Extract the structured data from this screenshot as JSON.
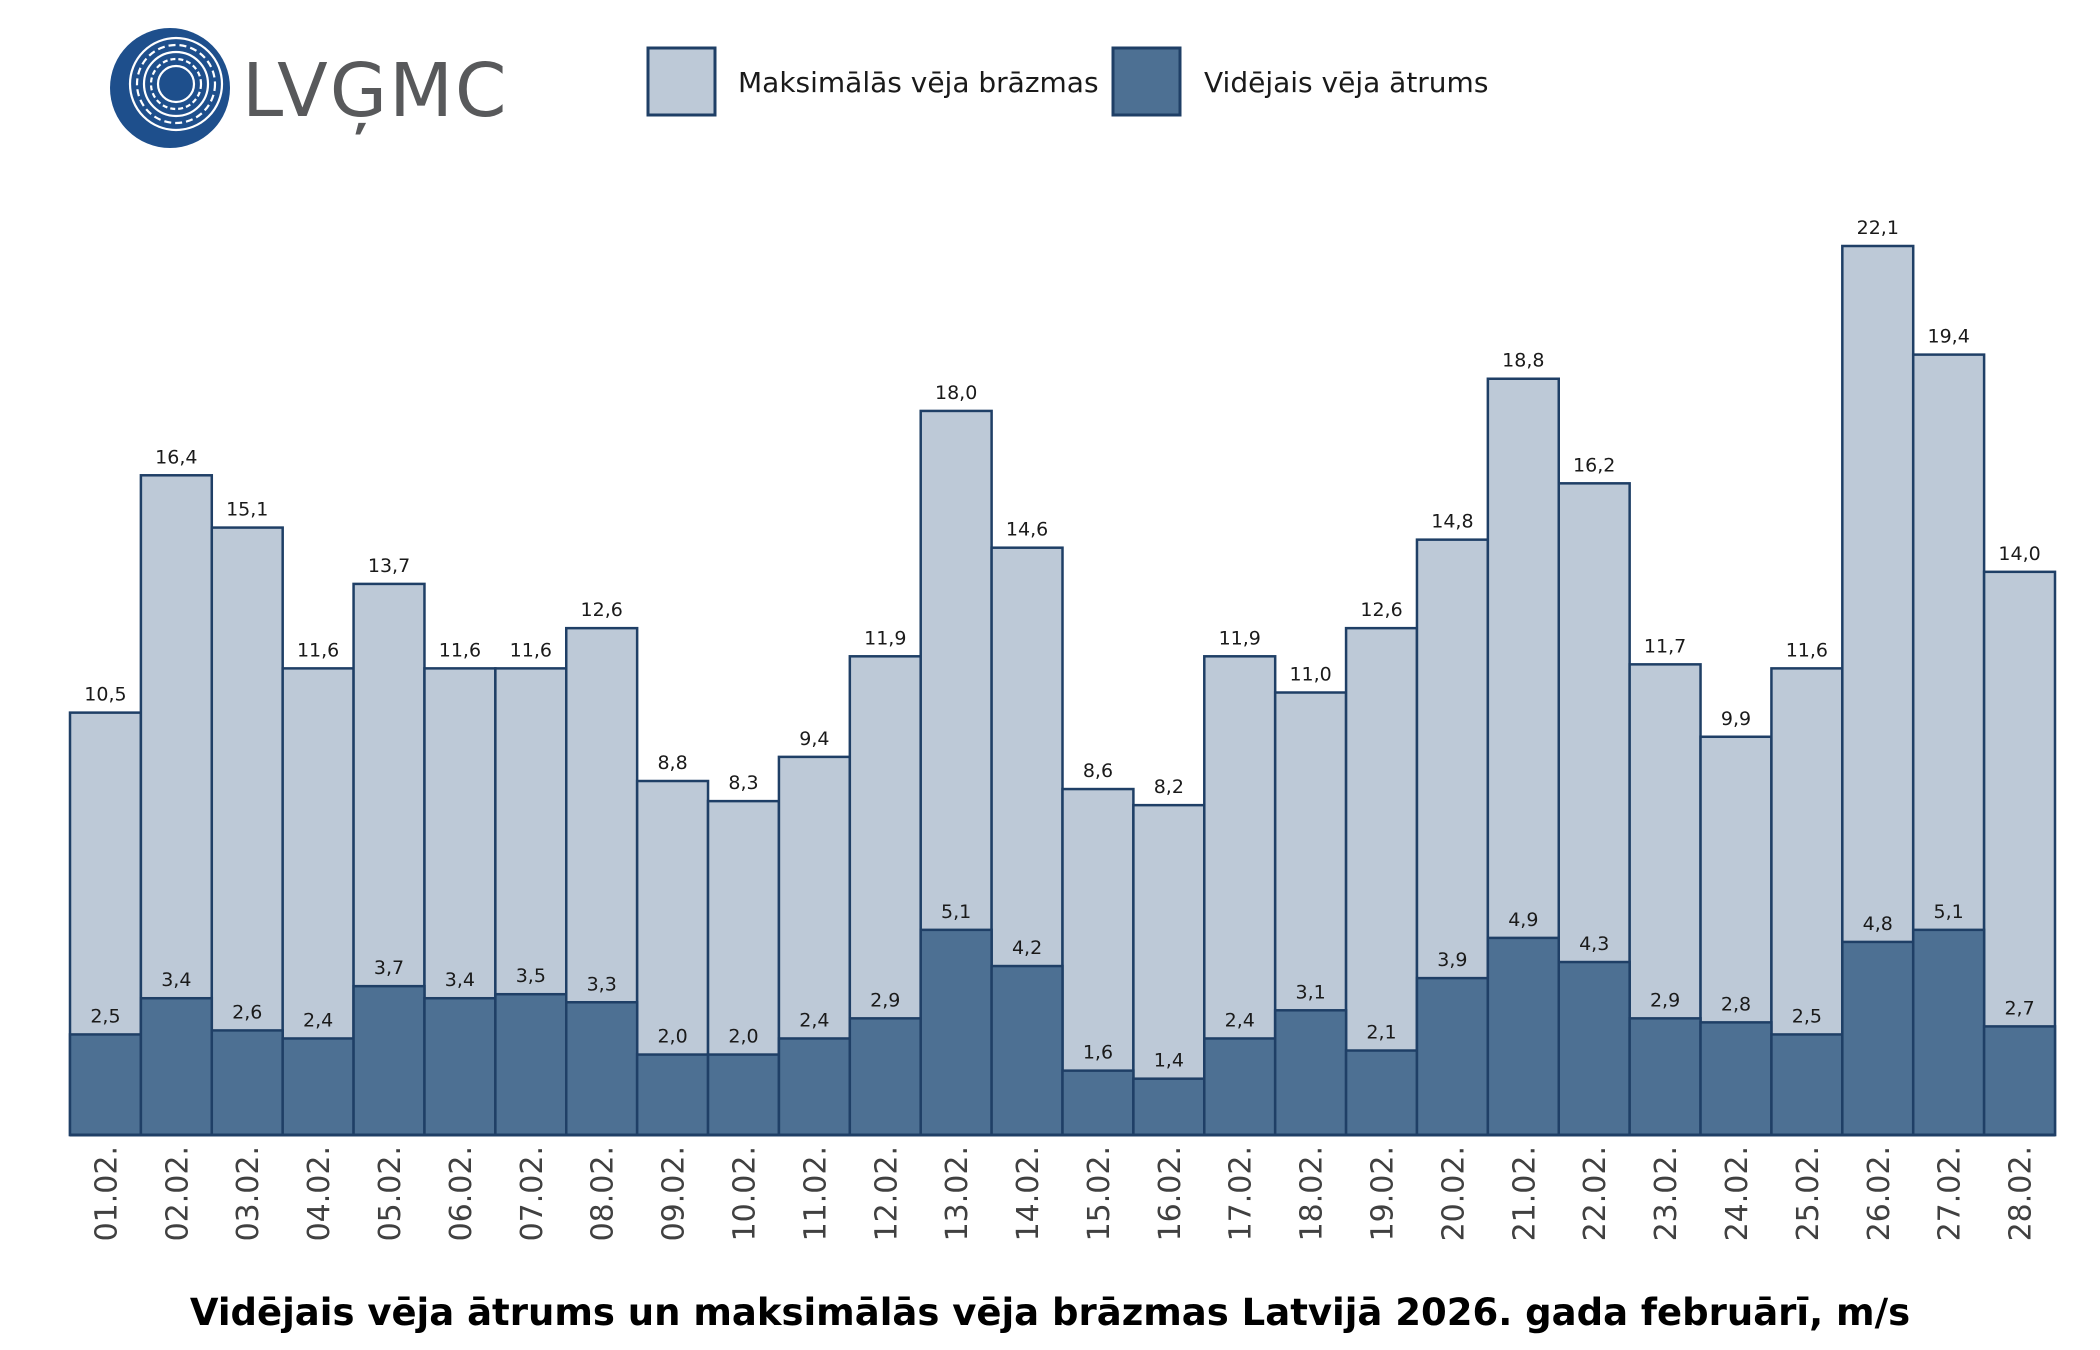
{
  "logo": {
    "text": "LVĢMC",
    "color": "#1e4f8c"
  },
  "legend": {
    "gust_label": "Maksimālās vēja brāzmas",
    "avg_label": "Vidējais vēja ātrums"
  },
  "colors": {
    "gust_fill": "#bdc9d7",
    "avg_fill": "#4d7093",
    "stroke": "#1f3f66"
  },
  "chart_data": {
    "type": "bar",
    "title": "Vidējais vēja ātrums un maksimālās vēja brāzmas Latvijā 2026. gada februārī, m/s",
    "categories": [
      "01.02.",
      "02.02.",
      "03.02.",
      "04.02.",
      "05.02.",
      "06.02.",
      "07.02.",
      "08.02.",
      "09.02.",
      "10.02.",
      "11.02.",
      "12.02.",
      "13.02.",
      "14.02.",
      "15.02.",
      "16.02.",
      "17.02.",
      "18.02.",
      "19.02.",
      "20.02.",
      "21.02.",
      "22.02.",
      "23.02.",
      "24.02.",
      "25.02.",
      "26.02.",
      "27.02.",
      "28.02."
    ],
    "series": [
      {
        "name": "Maksimālās vēja brāzmas",
        "values": [
          10.5,
          16.4,
          15.1,
          11.6,
          13.7,
          11.6,
          11.6,
          12.6,
          8.8,
          8.3,
          9.4,
          11.9,
          18.0,
          14.6,
          8.6,
          8.2,
          11.9,
          11.0,
          12.6,
          14.8,
          18.8,
          16.2,
          11.7,
          9.9,
          11.6,
          22.1,
          19.4,
          14.0
        ],
        "labels": [
          "10,5",
          "16,4",
          "15,1",
          "11,6",
          "13,7",
          "11,6",
          "11,6",
          "12,6",
          "8,8",
          "8,3",
          "9,4",
          "11,9",
          "18,0",
          "14,6",
          "8,6",
          "8,2",
          "11,9",
          "11,0",
          "12,6",
          "14,8",
          "18,8",
          "16,2",
          "11,7",
          "9,9",
          "11,6",
          "22,1",
          "19,4",
          "14,0"
        ]
      },
      {
        "name": "Vidējais vēja ātrums",
        "values": [
          2.5,
          3.4,
          2.6,
          2.4,
          3.7,
          3.4,
          3.5,
          3.3,
          2.0,
          2.0,
          2.4,
          2.9,
          5.1,
          4.2,
          1.6,
          1.4,
          2.4,
          3.1,
          2.1,
          3.9,
          4.9,
          4.3,
          2.9,
          2.8,
          2.5,
          4.8,
          5.1,
          2.7
        ],
        "labels": [
          "2,5",
          "3,4",
          "2,6",
          "2,4",
          "3,7",
          "3,4",
          "3,5",
          "3,3",
          "2,0",
          "2,0",
          "2,4",
          "2,9",
          "5,1",
          "4,2",
          "1,6",
          "1,4",
          "2,4",
          "3,1",
          "2,1",
          "3,9",
          "4,9",
          "4,3",
          "2,9",
          "2,8",
          "2,5",
          "4,8",
          "5,1",
          "2,7"
        ]
      }
    ],
    "ylim": [
      0,
      22.1
    ],
    "grid": false,
    "legend_position": "top"
  }
}
